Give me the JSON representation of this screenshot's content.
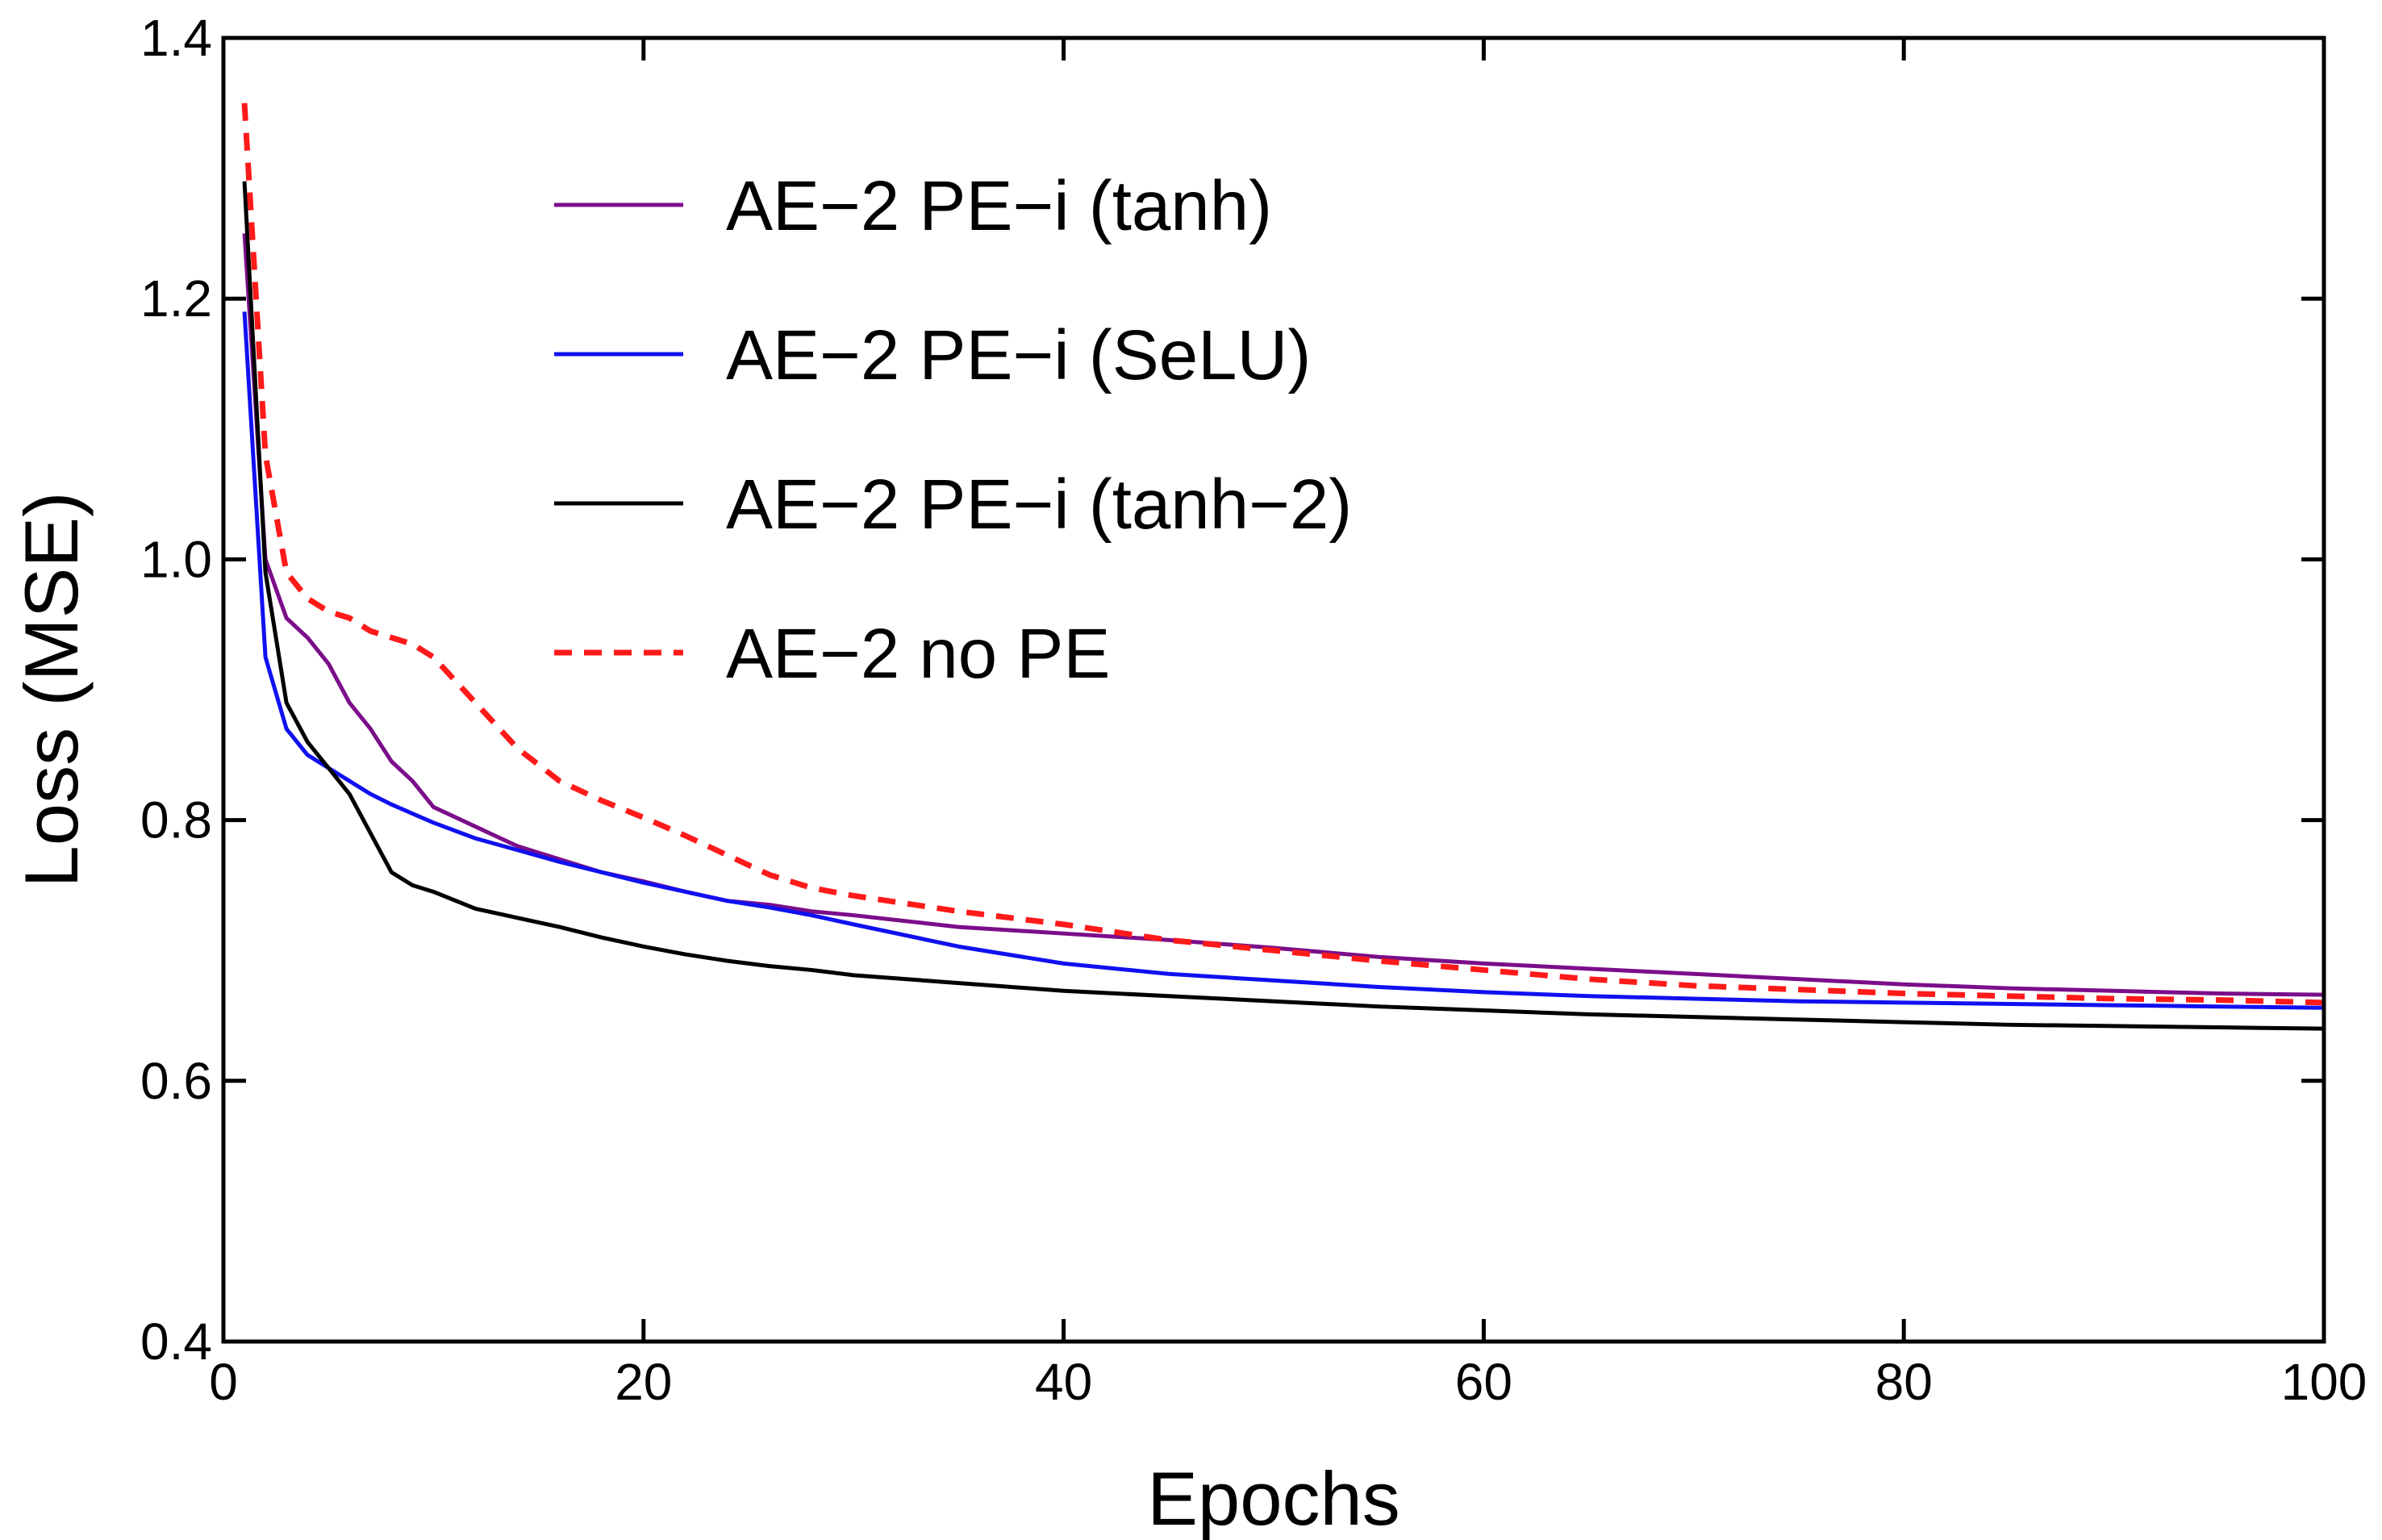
{
  "chart_data": {
    "type": "line",
    "x_label": "Epochs",
    "y_label": "Loss (MSE)",
    "x": [
      1,
      2,
      3,
      4,
      5,
      6,
      7,
      8,
      9,
      10,
      12,
      14,
      16,
      18,
      20,
      22,
      24,
      26,
      28,
      30,
      35,
      40,
      45,
      50,
      55,
      60,
      65,
      70,
      75,
      80,
      85,
      90,
      95,
      100
    ],
    "series": [
      {
        "name": "AE−2 PE−i (tanh)",
        "color": "#7b0e8a",
        "dashed": false,
        "values": [
          1.25,
          1.0,
          0.955,
          0.94,
          0.92,
          0.89,
          0.87,
          0.845,
          0.83,
          0.81,
          0.795,
          0.78,
          0.77,
          0.76,
          0.753,
          0.745,
          0.738,
          0.735,
          0.73,
          0.727,
          0.718,
          0.713,
          0.708,
          0.702,
          0.695,
          0.69,
          0.686,
          0.682,
          0.678,
          0.674,
          0.671,
          0.669,
          0.667,
          0.666
        ]
      },
      {
        "name": "AE−2 PE−i (SeLU)",
        "color": "#1010f0",
        "dashed": false,
        "values": [
          1.19,
          0.925,
          0.87,
          0.85,
          0.84,
          0.83,
          0.82,
          0.812,
          0.805,
          0.798,
          0.786,
          0.777,
          0.768,
          0.76,
          0.752,
          0.745,
          0.738,
          0.733,
          0.727,
          0.72,
          0.703,
          0.69,
          0.682,
          0.677,
          0.672,
          0.668,
          0.665,
          0.663,
          0.661,
          0.66,
          0.659,
          0.658,
          0.657,
          0.656
        ]
      },
      {
        "name": "AE−2 PE−i (tanh−2)",
        "color": "#000000",
        "dashed": false,
        "values": [
          1.29,
          0.99,
          0.89,
          0.86,
          0.84,
          0.82,
          0.79,
          0.76,
          0.75,
          0.745,
          0.732,
          0.725,
          0.718,
          0.71,
          0.703,
          0.697,
          0.692,
          0.688,
          0.685,
          0.681,
          0.675,
          0.669,
          0.665,
          0.661,
          0.657,
          0.654,
          0.651,
          0.649,
          0.647,
          0.645,
          0.643,
          0.642,
          0.641,
          0.64
        ]
      },
      {
        "name": "AE−2 no PE",
        "color": "#ff1a1a",
        "dashed": true,
        "values": [
          1.35,
          1.08,
          0.99,
          0.97,
          0.96,
          0.955,
          0.945,
          0.94,
          0.935,
          0.925,
          0.89,
          0.855,
          0.83,
          0.815,
          0.802,
          0.788,
          0.773,
          0.758,
          0.748,
          0.742,
          0.73,
          0.72,
          0.708,
          0.7,
          0.692,
          0.685,
          0.678,
          0.673,
          0.67,
          0.667,
          0.665,
          0.663,
          0.662,
          0.66
        ]
      }
    ],
    "xlim": [
      0,
      100
    ],
    "ylim": [
      0.4,
      1.4
    ],
    "xticks": [
      0,
      20,
      40,
      60,
      80,
      100
    ],
    "yticks": [
      0.4,
      0.6,
      0.8,
      {
        "value": 1,
        "label": "1.0"
      },
      1.2,
      1.4
    ],
    "grid": false,
    "legend": "upper center"
  }
}
